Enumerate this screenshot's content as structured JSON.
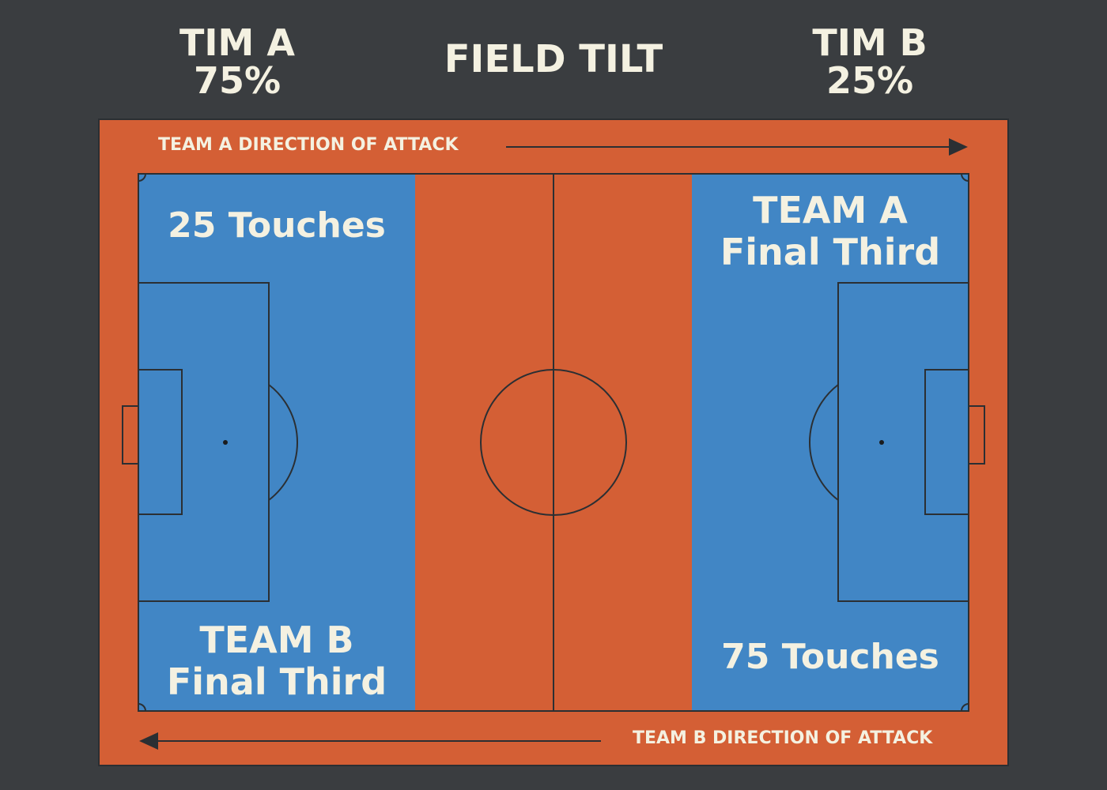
{
  "header": {
    "team_a_name": "TIM A",
    "team_a_pct": "75%",
    "title": "FIELD TILT",
    "team_b_name": "TIM B",
    "team_b_pct": "25%"
  },
  "attack": {
    "team_a": "TEAM A DIRECTION OF ATTACK",
    "team_b": "TEAM B DIRECTION OF ATTACK"
  },
  "zones": {
    "left_touches": "25 Touches",
    "left_label_line1": "TEAM B",
    "left_label_line2": "Final Third",
    "right_label_line1": "TEAM A",
    "right_label_line2": "Final Third",
    "right_touches": "75 Touches"
  },
  "colors": {
    "background": "#3a3d40",
    "orange": "#d45f35",
    "blue": "#4186c5",
    "text": "#f4f1e1",
    "lines": "#2b2f33"
  }
}
